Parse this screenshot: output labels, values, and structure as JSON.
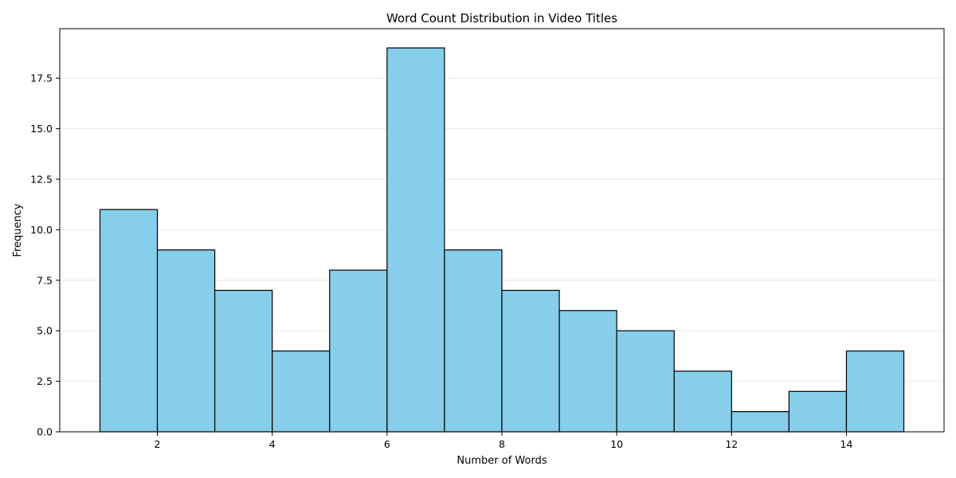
{
  "chart_data": {
    "type": "bar",
    "subtype": "histogram",
    "title": "Word Count Distribution in Video Titles",
    "xlabel": "Number of Words",
    "ylabel": "Frequency",
    "bins": [
      {
        "start": 1,
        "end": 2,
        "value": 11
      },
      {
        "start": 2,
        "end": 3,
        "value": 9
      },
      {
        "start": 3,
        "end": 4,
        "value": 7
      },
      {
        "start": 4,
        "end": 5,
        "value": 4
      },
      {
        "start": 5,
        "end": 6,
        "value": 8
      },
      {
        "start": 6,
        "end": 7,
        "value": 19
      },
      {
        "start": 7,
        "end": 8,
        "value": 9
      },
      {
        "start": 8,
        "end": 9,
        "value": 7
      },
      {
        "start": 9,
        "end": 10,
        "value": 6
      },
      {
        "start": 10,
        "end": 11,
        "value": 5
      },
      {
        "start": 11,
        "end": 12,
        "value": 3
      },
      {
        "start": 12,
        "end": 13,
        "value": 1
      },
      {
        "start": 13,
        "end": 14,
        "value": 2
      },
      {
        "start": 14,
        "end": 15,
        "value": 4
      }
    ],
    "xlim": [
      0.3,
      15.7
    ],
    "ylim": [
      0,
      19.95
    ],
    "xticks": [
      2,
      4,
      6,
      8,
      10,
      12,
      14
    ],
    "xtick_labels": [
      "2",
      "4",
      "6",
      "8",
      "10",
      "12",
      "14"
    ],
    "yticks": [
      0,
      2.5,
      5,
      7.5,
      10,
      12.5,
      15,
      17.5
    ],
    "ytick_labels": [
      "0.0",
      "2.5",
      "5.0",
      "7.5",
      "10.0",
      "12.5",
      "15.0",
      "17.5"
    ],
    "grid": {
      "x": false,
      "y": true
    },
    "colors": {
      "bar_fill": "#87ceeb",
      "bar_edge": "#000000",
      "grid": "#e6e6e6",
      "axis": "#000000"
    }
  }
}
